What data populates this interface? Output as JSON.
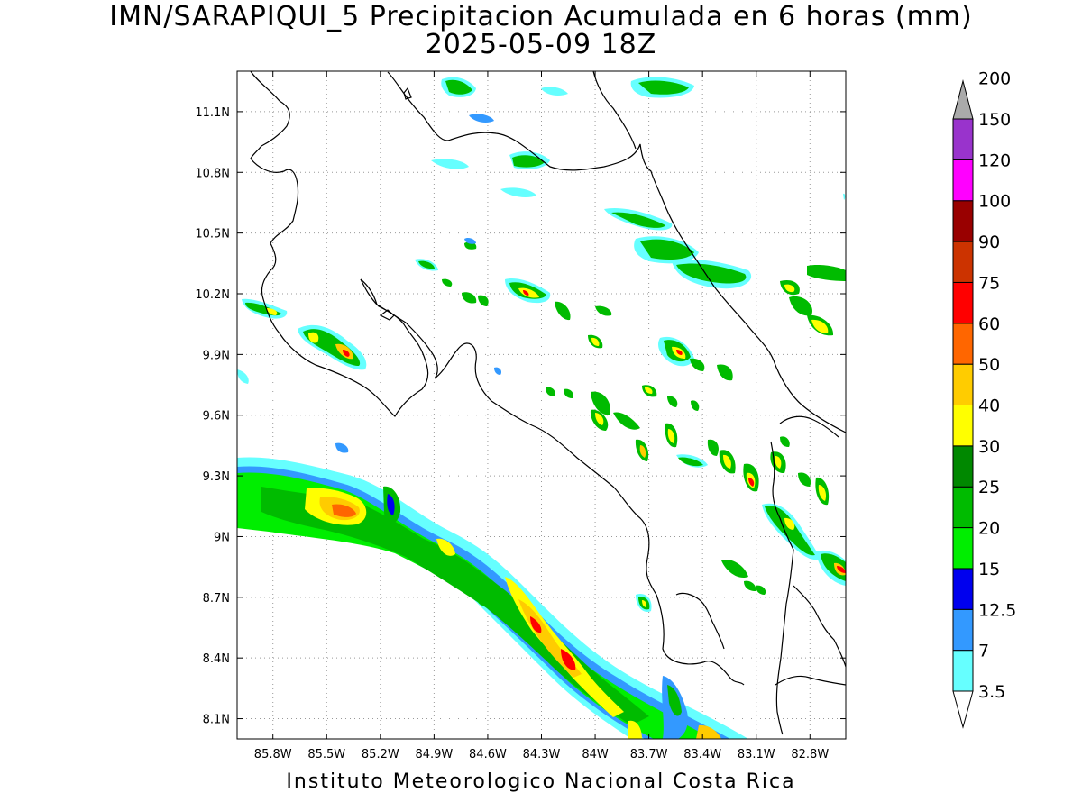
{
  "title": {
    "line1": "IMN/SARAPIQUI_5 Precipitacion Acumulada en 6 horas (mm)",
    "line2": "2025-05-09 18Z"
  },
  "footer": "Instituto Meteorologico Nacional Costa Rica",
  "map": {
    "lon_range": [
      -86.0,
      -82.6
    ],
    "lat_range": [
      8.0,
      11.3
    ],
    "lon_ticks": [
      {
        "value": -85.8,
        "label": "85.8W"
      },
      {
        "value": -85.5,
        "label": "85.5W"
      },
      {
        "value": -85.2,
        "label": "85.2W"
      },
      {
        "value": -84.9,
        "label": "84.9W"
      },
      {
        "value": -84.6,
        "label": "84.6W"
      },
      {
        "value": -84.3,
        "label": "84.3W"
      },
      {
        "value": -84.0,
        "label": "84W"
      },
      {
        "value": -83.7,
        "label": "83.7W"
      },
      {
        "value": -83.4,
        "label": "83.4W"
      },
      {
        "value": -83.1,
        "label": "83.1W"
      },
      {
        "value": -82.8,
        "label": "82.8W"
      }
    ],
    "lat_ticks": [
      {
        "value": 11.1,
        "label": "11.1N"
      },
      {
        "value": 10.8,
        "label": "10.8N"
      },
      {
        "value": 10.5,
        "label": "10.5N"
      },
      {
        "value": 10.2,
        "label": "10.2N"
      },
      {
        "value": 9.9,
        "label": "9.9N"
      },
      {
        "value": 9.6,
        "label": "9.6N"
      },
      {
        "value": 9.3,
        "label": "9.3N"
      },
      {
        "value": 9.0,
        "label": "9N"
      },
      {
        "value": 8.7,
        "label": "8.7N"
      },
      {
        "value": 8.4,
        "label": "8.4N"
      },
      {
        "value": 8.1,
        "label": "8.1N"
      }
    ],
    "gridlines": "dotted"
  },
  "colorbar": {
    "levels": [
      {
        "label": "3.5",
        "color": "#66ffff"
      },
      {
        "label": "7",
        "color": "#3399ff"
      },
      {
        "label": "12.5",
        "color": "#0000ee"
      },
      {
        "label": "15",
        "color": "#00ee00"
      },
      {
        "label": "20",
        "color": "#00bb00"
      },
      {
        "label": "25",
        "color": "#008800"
      },
      {
        "label": "30",
        "color": "#ffff00"
      },
      {
        "label": "40",
        "color": "#ffcc00"
      },
      {
        "label": "50",
        "color": "#ff6600"
      },
      {
        "label": "60",
        "color": "#ff0000"
      },
      {
        "label": "75",
        "color": "#cc3300"
      },
      {
        "label": "90",
        "color": "#990000"
      },
      {
        "label": "100",
        "color": "#ff00ff"
      },
      {
        "label": "120",
        "color": "#9933cc"
      },
      {
        "label": "150",
        "color": "#f2f2f2"
      },
      {
        "label": "200",
        "color": "#aaaaaa"
      }
    ]
  }
}
